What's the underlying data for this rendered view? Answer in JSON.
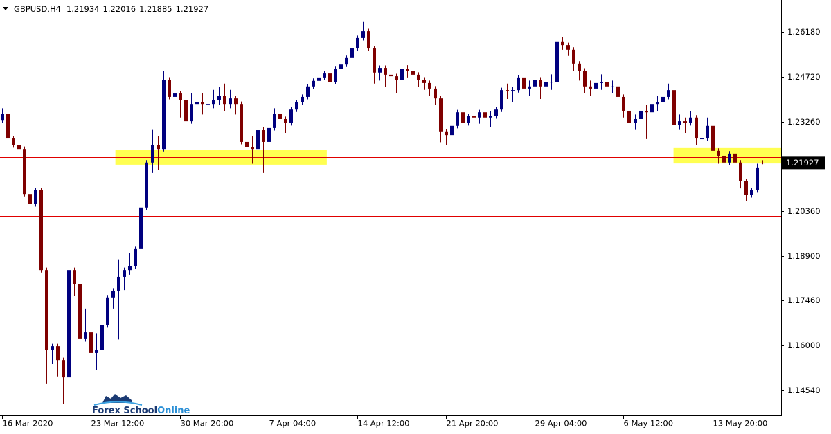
{
  "chart_data": {
    "type": "candlestick",
    "symbol": "GBPUSD,H4",
    "up_color": "#00007f",
    "down_color": "#7f0000",
    "ylim": [
      1.13737,
      1.27213
    ],
    "xlim": [
      -0.4,
      140.4
    ],
    "yticks": [
      {
        "value": 1.1454,
        "label": "1.14540"
      },
      {
        "value": 1.16,
        "label": "1.16000"
      },
      {
        "value": 1.1746,
        "label": "1.17460"
      },
      {
        "value": 1.189,
        "label": "1.18900"
      },
      {
        "value": 1.2036,
        "label": "1.20360"
      },
      {
        "value": 1.2182,
        "label": "1.21820"
      },
      {
        "value": 1.2326,
        "label": "1.23260"
      },
      {
        "value": 1.2472,
        "label": "1.24720"
      },
      {
        "value": 1.2618,
        "label": "1.26180"
      }
    ],
    "xticks": [
      {
        "value": 0,
        "label": "16 Mar 2020"
      },
      {
        "value": 16,
        "label": "23 Mar 12:00"
      },
      {
        "value": 32,
        "label": "30 Mar 20:00"
      },
      {
        "value": 48,
        "label": "7 Apr 04:00"
      },
      {
        "value": 64,
        "label": "14 Apr 12:00"
      },
      {
        "value": 80,
        "label": "21 Apr 20:00"
      },
      {
        "value": 96,
        "label": "29 Apr 04:00"
      },
      {
        "value": 112,
        "label": "6 May 12:00"
      },
      {
        "value": 128,
        "label": "13 May 20:00"
      }
    ],
    "levels": {
      "color": "#e00000",
      "values": [
        1.2645,
        1.2211,
        1.202
      ]
    },
    "zones": {
      "color": "#ffff33",
      "items": [
        {
          "x": [
            20.4,
            58.5
          ],
          "y": [
            1.2187,
            1.2236
          ]
        },
        {
          "x": [
            121,
            140.4
          ],
          "y": [
            1.2191,
            1.2241
          ]
        }
      ]
    },
    "logo": [
      "Forex School",
      "Online"
    ],
    "candles": [
      [
        1.233,
        1.237,
        1.2322,
        1.2351
      ],
      [
        1.2351,
        1.2359,
        1.2264,
        1.2272
      ],
      [
        1.2272,
        1.228,
        1.2242,
        1.225
      ],
      [
        1.225,
        1.2258,
        1.223,
        1.2238
      ],
      [
        1.2238,
        1.2246,
        1.2084,
        1.2092
      ],
      [
        1.2092,
        1.21,
        1.202,
        1.2059
      ],
      [
        1.2059,
        1.2112,
        1.2051,
        1.2104
      ],
      [
        1.2104,
        1.2112,
        1.1837,
        1.1845
      ],
      [
        1.1845,
        1.1853,
        1.1475,
        1.1587
      ],
      [
        1.1587,
        1.1606,
        1.154,
        1.1598
      ],
      [
        1.1598,
        1.1606,
        1.15,
        1.1553
      ],
      [
        1.1553,
        1.1561,
        1.1412,
        1.1497
      ],
      [
        1.1497,
        1.188,
        1.1489,
        1.1845
      ],
      [
        1.1845,
        1.1853,
        1.176,
        1.18
      ],
      [
        1.18,
        1.1808,
        1.16,
        1.1621
      ],
      [
        1.1621,
        1.172,
        1.1613,
        1.1643
      ],
      [
        1.1643,
        1.1651,
        1.1454,
        1.1576
      ],
      [
        1.1576,
        1.164,
        1.152,
        1.1587
      ],
      [
        1.1587,
        1.1674,
        1.1579,
        1.1666
      ],
      [
        1.1666,
        1.1764,
        1.1658,
        1.1756
      ],
      [
        1.1756,
        1.1786,
        1.172,
        1.1778
      ],
      [
        1.1778,
        1.188,
        1.162,
        1.1823
      ],
      [
        1.1823,
        1.1853,
        1.178,
        1.1845
      ],
      [
        1.1845,
        1.19,
        1.183,
        1.1857
      ],
      [
        1.1857,
        1.1921,
        1.1849,
        1.1913
      ],
      [
        1.1913,
        1.2056,
        1.1905,
        1.2048
      ],
      [
        1.2048,
        1.2202,
        1.204,
        1.2194
      ],
      [
        1.2194,
        1.23,
        1.216,
        1.225
      ],
      [
        1.225,
        1.228,
        1.217,
        1.2238
      ],
      [
        1.2238,
        1.249,
        1.223,
        1.2463
      ],
      [
        1.2463,
        1.2471,
        1.2399,
        1.2407
      ],
      [
        1.2407,
        1.244,
        1.236,
        1.2418
      ],
      [
        1.2418,
        1.2426,
        1.234,
        1.2396
      ],
      [
        1.2396,
        1.2404,
        1.229,
        1.2328
      ],
      [
        1.2328,
        1.242,
        1.232,
        1.2384
      ],
      [
        1.2384,
        1.243,
        1.235,
        1.2389
      ],
      [
        1.2389,
        1.242,
        1.235,
        1.2384
      ],
      [
        1.2384,
        1.241,
        1.234,
        1.2384
      ],
      [
        1.2384,
        1.243,
        1.237,
        1.2396
      ],
      [
        1.2396,
        1.244,
        1.238,
        1.2411
      ],
      [
        1.2411,
        1.245,
        1.236,
        1.2384
      ],
      [
        1.2384,
        1.243,
        1.237,
        1.2402
      ],
      [
        1.2402,
        1.241,
        1.235,
        1.2384
      ],
      [
        1.2384,
        1.2392,
        1.2253,
        1.2261
      ],
      [
        1.2261,
        1.229,
        1.219,
        1.2245
      ],
      [
        1.2245,
        1.228,
        1.219,
        1.2238
      ],
      [
        1.2238,
        1.2307,
        1.219,
        1.2299
      ],
      [
        1.2299,
        1.231,
        1.216,
        1.2261
      ],
      [
        1.2261,
        1.234,
        1.224,
        1.2306
      ],
      [
        1.2306,
        1.237,
        1.2298,
        1.2351
      ],
      [
        1.2351,
        1.2359,
        1.23,
        1.2335
      ],
      [
        1.2335,
        1.2343,
        1.229,
        1.2322
      ],
      [
        1.2322,
        1.2374,
        1.2314,
        1.2366
      ],
      [
        1.2366,
        1.2397,
        1.2358,
        1.2389
      ],
      [
        1.2389,
        1.2415,
        1.2381,
        1.2407
      ],
      [
        1.2407,
        1.2449,
        1.2399,
        1.2441
      ],
      [
        1.2441,
        1.2467,
        1.2433,
        1.2459
      ],
      [
        1.2459,
        1.2478,
        1.2451,
        1.247
      ],
      [
        1.247,
        1.2491,
        1.2462,
        1.2483
      ],
      [
        1.2483,
        1.2491,
        1.2448,
        1.2456
      ],
      [
        1.2456,
        1.2505,
        1.2448,
        1.2497
      ],
      [
        1.2497,
        1.252,
        1.2489,
        1.2512
      ],
      [
        1.2512,
        1.2541,
        1.2504,
        1.2533
      ],
      [
        1.2533,
        1.2572,
        1.2525,
        1.2564
      ],
      [
        1.2564,
        1.2606,
        1.2556,
        1.2598
      ],
      [
        1.2598,
        1.265,
        1.259,
        1.262
      ],
      [
        1.262,
        1.2628,
        1.2556,
        1.2564
      ],
      [
        1.2564,
        1.2572,
        1.245,
        1.2486
      ],
      [
        1.2486,
        1.2509,
        1.246,
        1.2501
      ],
      [
        1.2501,
        1.2509,
        1.244,
        1.2479
      ],
      [
        1.2479,
        1.25,
        1.245,
        1.2474
      ],
      [
        1.2474,
        1.2482,
        1.242,
        1.2463
      ],
      [
        1.2463,
        1.2505,
        1.2455,
        1.2497
      ],
      [
        1.2497,
        1.251,
        1.247,
        1.2492
      ],
      [
        1.2492,
        1.25,
        1.246,
        1.2479
      ],
      [
        1.2479,
        1.2487,
        1.244,
        1.2463
      ],
      [
        1.2463,
        1.2471,
        1.243,
        1.2452
      ],
      [
        1.2452,
        1.246,
        1.241,
        1.2434
      ],
      [
        1.2434,
        1.2442,
        1.238,
        1.2402
      ],
      [
        1.2402,
        1.241,
        1.226,
        1.2295
      ],
      [
        1.2295,
        1.2303,
        1.225,
        1.2283
      ],
      [
        1.2283,
        1.2321,
        1.2275,
        1.2313
      ],
      [
        1.2313,
        1.2365,
        1.2305,
        1.2357
      ],
      [
        1.2357,
        1.2365,
        1.23,
        1.2322
      ],
      [
        1.2322,
        1.2352,
        1.2314,
        1.2344
      ],
      [
        1.2344,
        1.236,
        1.232,
        1.234
      ],
      [
        1.234,
        1.2365,
        1.232,
        1.2357
      ],
      [
        1.2357,
        1.2365,
        1.23,
        1.234
      ],
      [
        1.234,
        1.236,
        1.231,
        1.2344
      ],
      [
        1.2344,
        1.2374,
        1.2336,
        1.2366
      ],
      [
        1.2366,
        1.2437,
        1.2358,
        1.2429
      ],
      [
        1.2429,
        1.245,
        1.24,
        1.2425
      ],
      [
        1.2425,
        1.244,
        1.239,
        1.2429
      ],
      [
        1.2429,
        1.2478,
        1.2421,
        1.247
      ],
      [
        1.247,
        1.2478,
        1.24,
        1.2434
      ],
      [
        1.2434,
        1.246,
        1.241,
        1.2441
      ],
      [
        1.2441,
        1.25,
        1.2433,
        1.2463
      ],
      [
        1.2463,
        1.2471,
        1.24,
        1.2441
      ],
      [
        1.2441,
        1.247,
        1.242,
        1.2456
      ],
      [
        1.2456,
        1.248,
        1.243,
        1.2456
      ],
      [
        1.2456,
        1.264,
        1.2448,
        1.2587
      ],
      [
        1.2587,
        1.26,
        1.256,
        1.2575
      ],
      [
        1.2575,
        1.2583,
        1.254,
        1.256
      ],
      [
        1.256,
        1.2568,
        1.249,
        1.2515
      ],
      [
        1.2515,
        1.2523,
        1.246,
        1.2492
      ],
      [
        1.2492,
        1.25,
        1.242,
        1.2441
      ],
      [
        1.2441,
        1.246,
        1.241,
        1.2434
      ],
      [
        1.2434,
        1.248,
        1.2426,
        1.2452
      ],
      [
        1.2452,
        1.248,
        1.243,
        1.2456
      ],
      [
        1.2456,
        1.2464,
        1.242,
        1.2441
      ],
      [
        1.2441,
        1.246,
        1.242,
        1.2441
      ],
      [
        1.2441,
        1.2449,
        1.238,
        1.2407
      ],
      [
        1.2407,
        1.2415,
        1.234,
        1.2362
      ],
      [
        1.2362,
        1.237,
        1.23,
        1.2322
      ],
      [
        1.2322,
        1.235,
        1.23,
        1.2335
      ],
      [
        1.2335,
        1.24,
        1.2327,
        1.2362
      ],
      [
        1.2362,
        1.238,
        1.227,
        1.2357
      ],
      [
        1.2357,
        1.24,
        1.2349,
        1.2384
      ],
      [
        1.2384,
        1.241,
        1.236,
        1.2389
      ],
      [
        1.2389,
        1.244,
        1.2381,
        1.2407
      ],
      [
        1.2407,
        1.245,
        1.2399,
        1.2429
      ],
      [
        1.2429,
        1.2437,
        1.229,
        1.2317
      ],
      [
        1.2317,
        1.235,
        1.23,
        1.2328
      ],
      [
        1.2328,
        1.234,
        1.229,
        1.2322
      ],
      [
        1.2322,
        1.236,
        1.2314,
        1.234
      ],
      [
        1.234,
        1.2348,
        1.225,
        1.2272
      ],
      [
        1.2272,
        1.229,
        1.224,
        1.2272
      ],
      [
        1.2272,
        1.234,
        1.2264,
        1.2313
      ],
      [
        1.2313,
        1.2321,
        1.221,
        1.2232
      ],
      [
        1.2232,
        1.224,
        1.219,
        1.2216
      ],
      [
        1.2216,
        1.2224,
        1.217,
        1.2194
      ],
      [
        1.2194,
        1.2231,
        1.2186,
        1.2223
      ],
      [
        1.2223,
        1.2231,
        1.217,
        1.2194
      ],
      [
        1.2194,
        1.2202,
        1.211,
        1.2133
      ],
      [
        1.2133,
        1.2141,
        1.207,
        1.2088
      ],
      [
        1.2088,
        1.2112,
        1.208,
        1.2104
      ],
      [
        1.2104,
        1.219,
        1.2096,
        1.2178
      ],
      [
        1.21934,
        1.22016,
        1.21885,
        1.21927
      ]
    ]
  }
}
